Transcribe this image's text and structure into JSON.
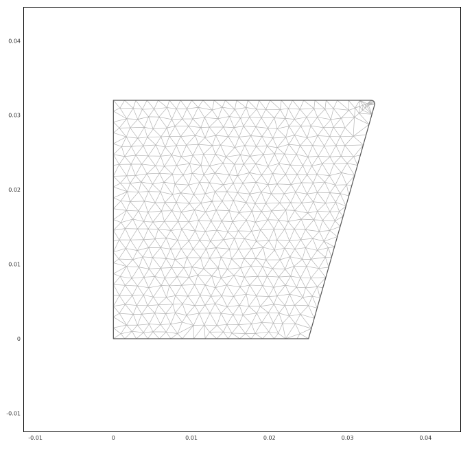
{
  "chart_data": {
    "type": "mesh",
    "xlim": [
      -0.0115,
      0.0445
    ],
    "ylim": [
      -0.0125,
      0.0445
    ],
    "x_ticks": [
      {
        "value": -0.01,
        "label": "-0.01"
      },
      {
        "value": 0,
        "label": "0"
      },
      {
        "value": 0.01,
        "label": "0.01"
      },
      {
        "value": 0.02,
        "label": "0.02"
      },
      {
        "value": 0.03,
        "label": "0.03"
      },
      {
        "value": 0.04,
        "label": "0.04"
      }
    ],
    "y_ticks": [
      {
        "value": -0.01,
        "label": "-0.01"
      },
      {
        "value": 0,
        "label": "0"
      },
      {
        "value": 0.01,
        "label": "0.01"
      },
      {
        "value": 0.02,
        "label": "0.02"
      },
      {
        "value": 0.03,
        "label": "0.03"
      },
      {
        "value": 0.04,
        "label": "0.04"
      }
    ],
    "domain_vertices": [
      [
        0,
        0
      ],
      [
        0.025,
        0
      ],
      [
        0.0335,
        0.0315
      ],
      [
        0.033,
        0.032
      ],
      [
        0,
        0.032
      ]
    ],
    "grid": false,
    "colors": {
      "frame": "#000000",
      "mesh_edges": "#b3b3b3",
      "boundary": "#555555"
    }
  }
}
